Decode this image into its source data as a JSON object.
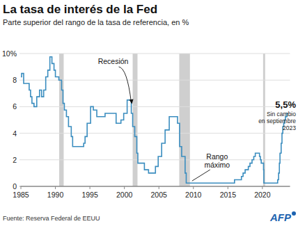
{
  "chart_data": {
    "type": "line",
    "title": "La tasa de interés de la Fed",
    "subtitle": "Parte superior del rango de la tasa de referencia, en %",
    "source": "Fuente: Reserva Federal de EEUU",
    "logo": "AFP",
    "x": [
      1985.0,
      1985.1,
      1985.4,
      1986.2,
      1986.4,
      1986.6,
      1986.9,
      1987.3,
      1987.7,
      1988.0,
      1988.3,
      1988.6,
      1988.9,
      1989.2,
      1989.5,
      1989.8,
      1990.0,
      1990.5,
      1990.9,
      1991.1,
      1991.3,
      1991.6,
      1991.9,
      1992.3,
      1992.5,
      1994.1,
      1994.3,
      1994.6,
      1995.1,
      1995.5,
      1996.0,
      1997.2,
      1998.8,
      1999.5,
      1999.9,
      2000.4,
      2001.0,
      2001.2,
      2001.5,
      2001.8,
      2001.95,
      2002.9,
      2003.5,
      2004.5,
      2004.9,
      2005.4,
      2005.9,
      2006.5,
      2007.7,
      2008.0,
      2008.3,
      2008.8,
      2008.96,
      2015.96,
      2016.96,
      2017.2,
      2017.5,
      2017.96,
      2018.2,
      2018.5,
      2018.75,
      2018.97,
      2019.58,
      2019.71,
      2019.83,
      2020.17,
      2020.21,
      2022.21,
      2022.35,
      2022.46,
      2022.55,
      2022.72,
      2022.84,
      2022.96,
      2023.09,
      2023.22,
      2023.34,
      2023.57,
      2023.75
    ],
    "series": [
      {
        "color": "#3a8dbf",
        "line_style": "step",
        "values": [
          8.25,
          8.5,
          7.75,
          7.25,
          6.75,
          6.25,
          6.0,
          6.75,
          7.25,
          6.75,
          7.25,
          8.25,
          8.75,
          9.75,
          9.25,
          8.75,
          8.25,
          8.0,
          7.25,
          6.25,
          5.75,
          5.25,
          4.5,
          3.75,
          3.0,
          3.25,
          3.75,
          4.75,
          6.0,
          5.75,
          5.25,
          5.5,
          4.75,
          5.0,
          5.5,
          6.5,
          5.5,
          4.5,
          3.75,
          2.5,
          1.75,
          1.25,
          1.0,
          1.5,
          2.25,
          3.25,
          4.25,
          5.25,
          4.75,
          3.0,
          2.25,
          1.0,
          0.25,
          0.5,
          0.75,
          1.0,
          1.25,
          1.5,
          1.75,
          2.0,
          2.25,
          2.5,
          2.25,
          2.0,
          1.75,
          1.25,
          0.25,
          0.5,
          1.0,
          1.75,
          2.5,
          3.25,
          4.0,
          4.5,
          4.75,
          5.0,
          5.25,
          5.5,
          5.5
        ]
      }
    ],
    "xlim": [
      1985,
      2024
    ],
    "xticks": [
      1985,
      1990,
      1995,
      2000,
      2005,
      2010,
      2015,
      2020
    ],
    "ylim": [
      0,
      10
    ],
    "yticks": [
      0,
      2,
      4,
      6,
      8,
      {
        "value": 10,
        "label": "10%"
      }
    ],
    "grid": true,
    "recessions": [
      [
        1990.55,
        1991.2
      ],
      [
        2001.2,
        2001.9
      ],
      [
        2007.95,
        2009.5
      ],
      [
        2020.1,
        2020.4
      ]
    ],
    "annotations": [
      {
        "text": [
          "Recesión"
        ],
        "x": 2001.2,
        "y": 6.2
      },
      {
        "text": [
          "Rango",
          "máximo"
        ],
        "x": 2009.6,
        "y": 0.25
      },
      {
        "text": [
          "5,5%"
        ],
        "x": 2023.6,
        "y": 5.5
      },
      {
        "text": [
          "Sin cambio",
          "en septiembre",
          "2023"
        ],
        "x": 2023.6,
        "y": 5.5
      }
    ]
  }
}
